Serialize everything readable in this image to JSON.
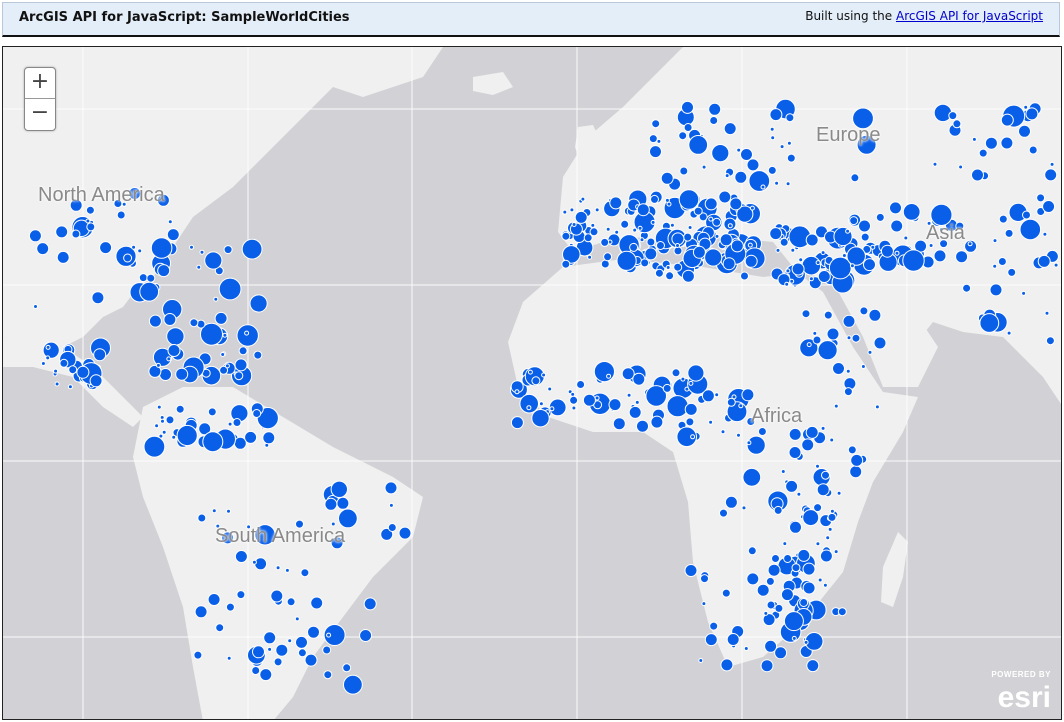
{
  "header": {
    "title": "ArcGIS API for JavaScript: SampleWorldCities",
    "credit_prefix": "Built using the ",
    "credit_link": "ArcGIS API for JavaScript"
  },
  "map": {
    "zoom_in": "+",
    "zoom_out": "−",
    "labels": {
      "north_america": "North America",
      "europe": "Europe",
      "asia": "Asia",
      "africa": "Africa",
      "south_america": "South America"
    },
    "attribution": {
      "powered_by": "POWERED BY",
      "brand": "esri"
    },
    "colors": {
      "ocean": "#d2d1d5",
      "land": "#f0f0f0",
      "city": "#0a5fe8",
      "graticule": "#ffffff"
    },
    "layer": "SampleWorldCities"
  }
}
